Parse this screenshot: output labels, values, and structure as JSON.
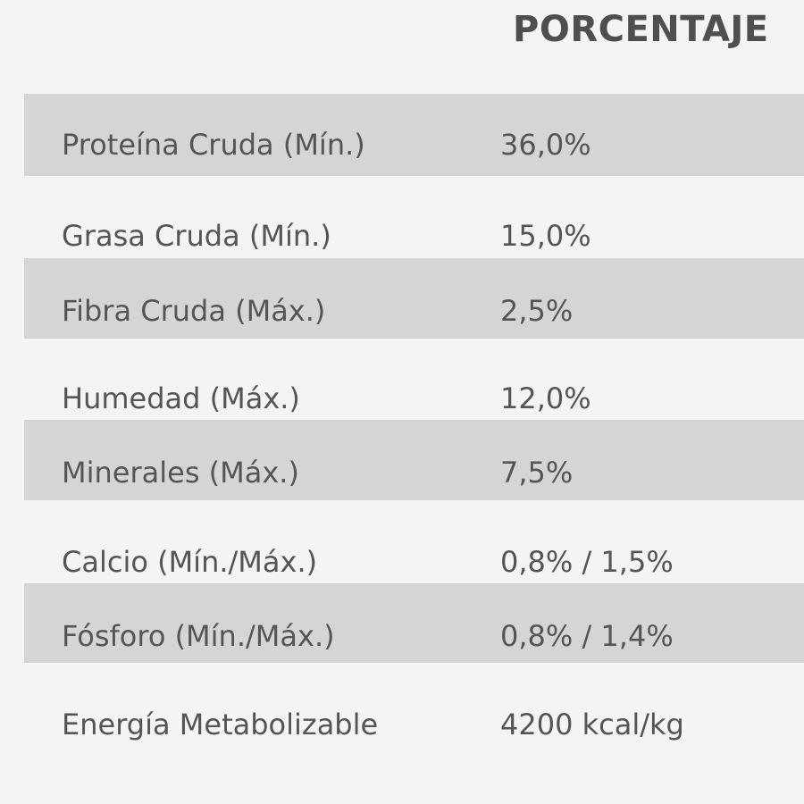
{
  "header": {
    "column_label": "PORCENTAJE"
  },
  "rows": [
    {
      "label": "Proteína Cruda (Mín.)",
      "value": "36,0%"
    },
    {
      "label": "Grasa Cruda (Mín.)",
      "value": "15,0%"
    },
    {
      "label": "Fibra Cruda (Máx.)",
      "value": "2,5%"
    },
    {
      "label": "Humedad (Máx.)",
      "value": "12,0%"
    },
    {
      "label": "Minerales (Máx.)",
      "value": "7,5%"
    },
    {
      "label": "Calcio (Mín./Máx.)",
      "value": "0,8% / 1,5%"
    },
    {
      "label": "Fósforo (Mín./Máx.)",
      "value": "0,8% / 1,4%"
    },
    {
      "label": "Energía Metabolizable",
      "value": "4200 kcal/kg"
    }
  ],
  "colors": {
    "background": "#f4f4f4",
    "shaded_row": "#d5d5d5",
    "text": "#555557"
  }
}
